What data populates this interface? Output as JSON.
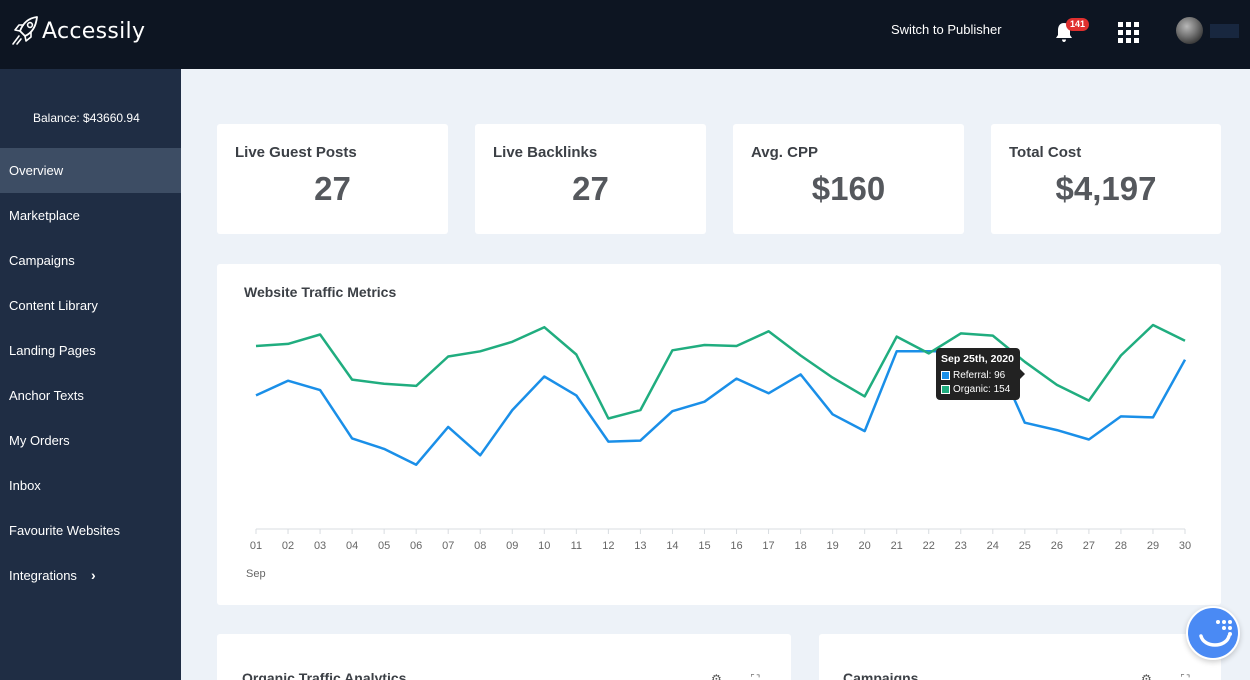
{
  "header": {
    "brand": "Accessily",
    "switch_label": "Switch to Publisher",
    "notification_count": "141"
  },
  "sidebar": {
    "balance": "Balance: $43660.94",
    "items": [
      {
        "label": "Overview"
      },
      {
        "label": "Marketplace"
      },
      {
        "label": "Campaigns"
      },
      {
        "label": "Content Library"
      },
      {
        "label": "Landing Pages"
      },
      {
        "label": "Anchor Texts"
      },
      {
        "label": "My Orders"
      },
      {
        "label": "Inbox"
      },
      {
        "label": "Favourite Websites"
      },
      {
        "label": "Integrations"
      }
    ]
  },
  "stats": [
    {
      "title": "Live Guest Posts",
      "value": "27"
    },
    {
      "title": "Live Backlinks",
      "value": "27"
    },
    {
      "title": "Avg. CPP",
      "value": "$160"
    },
    {
      "title": "Total Cost",
      "value": "$4,197"
    }
  ],
  "traffic": {
    "title": "Website Traffic Metrics",
    "month_label": "Sep",
    "tooltip": {
      "date": "Sep 25th, 2020",
      "referral": "Referral: 96",
      "organic": "Organic: 154"
    }
  },
  "bottom_cards": {
    "left_title": "Organic Traffic Analytics",
    "right_title": "Campaigns"
  },
  "colors": {
    "referral": "#1a8fe8",
    "organic": "#20ad7f"
  },
  "chart_data": {
    "type": "line",
    "title": "Website Traffic Metrics",
    "categories": [
      "01",
      "02",
      "03",
      "04",
      "05",
      "06",
      "07",
      "08",
      "09",
      "10",
      "11",
      "12",
      "13",
      "14",
      "15",
      "16",
      "17",
      "18",
      "19",
      "20",
      "21",
      "22",
      "23",
      "24",
      "25",
      "26",
      "27",
      "28",
      "29",
      "30"
    ],
    "xlabel": "Sep",
    "series": [
      {
        "name": "Referral",
        "color": "#1a8fe8",
        "values": [
          122,
          136,
          127,
          81,
          71,
          56,
          92,
          65,
          108,
          140,
          122,
          78,
          79,
          107,
          116,
          138,
          124,
          142,
          104,
          88,
          164,
          164,
          164,
          164,
          96,
          89,
          80,
          102,
          101,
          156
        ]
      },
      {
        "name": "Organic",
        "color": "#20ad7f",
        "values": [
          169,
          171,
          180,
          137,
          133,
          131,
          159,
          164,
          173,
          187,
          161,
          100,
          108,
          165,
          170,
          169,
          183,
          160,
          139,
          121,
          178,
          162,
          181,
          179,
          154,
          132,
          117,
          160,
          189,
          174
        ]
      }
    ],
    "grid": false,
    "legend": "none"
  }
}
